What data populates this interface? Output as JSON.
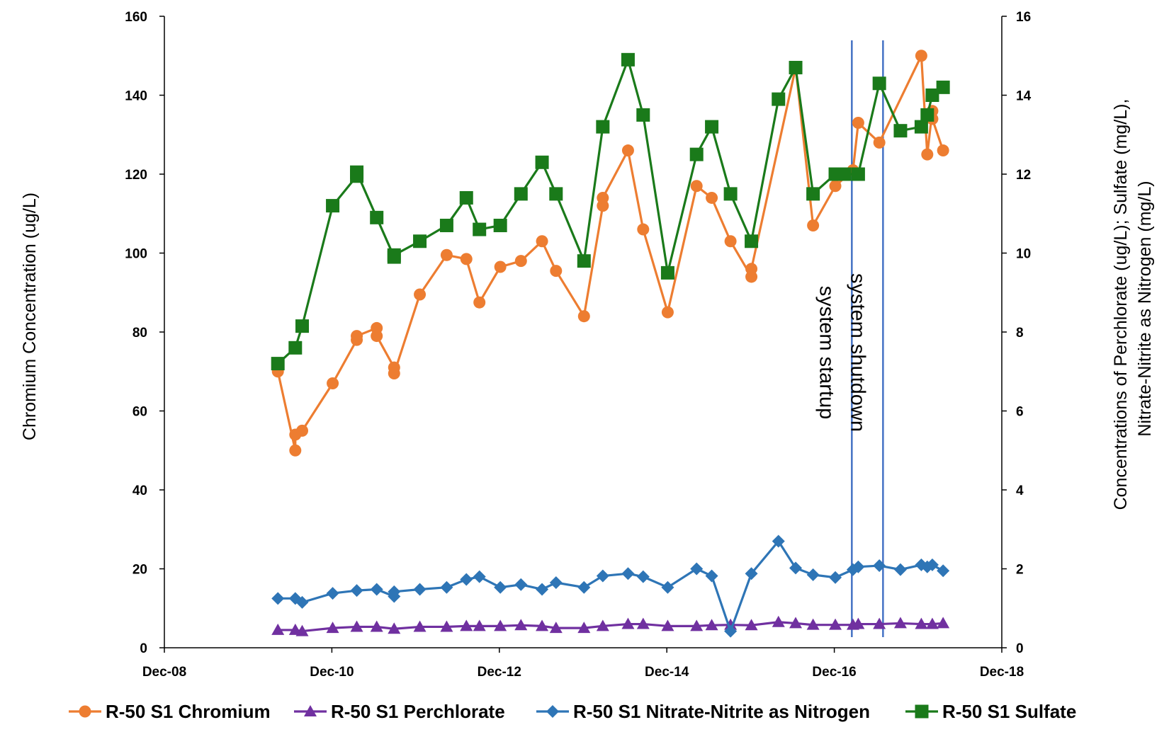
{
  "chart_data": {
    "type": "line",
    "x_axis": {
      "ticks": [
        "Dec-08",
        "Dec-10",
        "Dec-12",
        "Dec-14",
        "Dec-16",
        "Dec-18"
      ],
      "range": [
        "2008-12-01",
        "2018-12-01"
      ]
    },
    "y_left": {
      "label": "Chromium Concentration (ug/L)",
      "range": [
        0,
        160
      ],
      "ticks": [
        0,
        20,
        40,
        60,
        80,
        100,
        120,
        140,
        160
      ]
    },
    "y_right": {
      "label_line1": "Concentrations of Perchlorate (ug/L); Sulfate (mg/L),",
      "label_line2": "Nitrate-Nitrite as Nitrogen (mg/L)",
      "range": [
        0,
        16
      ],
      "ticks": [
        0,
        2,
        4,
        6,
        8,
        10,
        12,
        14,
        16
      ]
    },
    "annotations": [
      {
        "date": "2017-02-15",
        "text": "system startup"
      },
      {
        "date": "2017-07-01",
        "text": "system shutdown"
      }
    ],
    "legend_position": "bottom",
    "grid": false,
    "series": [
      {
        "name": "R-50 S1 Chromium",
        "axis": "left",
        "color": "#ED7D31",
        "marker": "circle",
        "points": [
          [
            "2010-04-10",
            70
          ],
          [
            "2010-06-25",
            50
          ],
          [
            "2010-06-25",
            54
          ],
          [
            "2010-07-25",
            55
          ],
          [
            "2010-12-05",
            67
          ],
          [
            "2011-03-20",
            78
          ],
          [
            "2011-03-20",
            79
          ],
          [
            "2011-06-15",
            81
          ],
          [
            "2011-06-15",
            79
          ],
          [
            "2011-08-30",
            71
          ],
          [
            "2011-08-30",
            69.5
          ],
          [
            "2011-12-20",
            89.5
          ],
          [
            "2012-04-15",
            99.5
          ],
          [
            "2012-07-10",
            98.5
          ],
          [
            "2012-09-05",
            87.5
          ],
          [
            "2012-12-05",
            96.5
          ],
          [
            "2013-03-05",
            98
          ],
          [
            "2013-06-05",
            103
          ],
          [
            "2013-08-05",
            95.5
          ],
          [
            "2013-12-05",
            84
          ],
          [
            "2014-02-25",
            112
          ],
          [
            "2014-02-25",
            114
          ],
          [
            "2014-06-15",
            126
          ],
          [
            "2014-08-20",
            106
          ],
          [
            "2014-12-05",
            85
          ],
          [
            "2015-04-10",
            117
          ],
          [
            "2015-06-15",
            114
          ],
          [
            "2015-09-05",
            103
          ],
          [
            "2015-12-05",
            94
          ],
          [
            "2015-12-05",
            96
          ],
          [
            "2016-06-15",
            147
          ],
          [
            "2016-08-30",
            107
          ],
          [
            "2016-12-05",
            117
          ],
          [
            "2017-02-20",
            121
          ],
          [
            "2017-03-15",
            133
          ],
          [
            "2017-06-15",
            128
          ],
          [
            "2017-12-15",
            150
          ],
          [
            "2018-01-10",
            125
          ],
          [
            "2018-02-01",
            136
          ],
          [
            "2018-02-01",
            134
          ],
          [
            "2018-03-20",
            126
          ]
        ]
      },
      {
        "name": "R-50 S1 Perchlorate",
        "axis": "right",
        "color": "#7030A0",
        "marker": "triangle",
        "points": [
          [
            "2010-04-10",
            0.45
          ],
          [
            "2010-06-25",
            0.45
          ],
          [
            "2010-07-25",
            0.42
          ],
          [
            "2010-12-05",
            0.5
          ],
          [
            "2011-03-20",
            0.53
          ],
          [
            "2011-06-15",
            0.53
          ],
          [
            "2011-08-30",
            0.48
          ],
          [
            "2011-12-20",
            0.53
          ],
          [
            "2012-04-15",
            0.53
          ],
          [
            "2012-07-10",
            0.55
          ],
          [
            "2012-09-05",
            0.55
          ],
          [
            "2012-12-05",
            0.55
          ],
          [
            "2013-03-05",
            0.57
          ],
          [
            "2013-06-05",
            0.55
          ],
          [
            "2013-08-05",
            0.5
          ],
          [
            "2013-12-05",
            0.5
          ],
          [
            "2014-02-25",
            0.55
          ],
          [
            "2014-06-15",
            0.6
          ],
          [
            "2014-08-20",
            0.6
          ],
          [
            "2014-12-05",
            0.55
          ],
          [
            "2015-04-10",
            0.55
          ],
          [
            "2015-06-15",
            0.57
          ],
          [
            "2015-09-05",
            0.58
          ],
          [
            "2015-12-05",
            0.57
          ],
          [
            "2016-04-01",
            0.65
          ],
          [
            "2016-06-15",
            0.62
          ],
          [
            "2016-08-30",
            0.58
          ],
          [
            "2016-12-05",
            0.58
          ],
          [
            "2017-02-20",
            0.58
          ],
          [
            "2017-03-15",
            0.6
          ],
          [
            "2017-06-15",
            0.6
          ],
          [
            "2017-09-15",
            0.62
          ],
          [
            "2017-12-15",
            0.6
          ],
          [
            "2018-02-01",
            0.6
          ],
          [
            "2018-03-20",
            0.62
          ]
        ]
      },
      {
        "name": "R-50 S1 Nitrate-Nitrite as Nitrogen",
        "axis": "right",
        "color": "#2E75B6",
        "marker": "diamond",
        "points": [
          [
            "2010-04-10",
            1.25
          ],
          [
            "2010-06-25",
            1.25
          ],
          [
            "2010-07-25",
            1.15
          ],
          [
            "2010-12-05",
            1.38
          ],
          [
            "2011-03-20",
            1.45
          ],
          [
            "2011-06-15",
            1.48
          ],
          [
            "2011-08-30",
            1.3
          ],
          [
            "2011-08-30",
            1.42
          ],
          [
            "2011-12-20",
            1.48
          ],
          [
            "2012-04-15",
            1.53
          ],
          [
            "2012-07-10",
            1.73
          ],
          [
            "2012-09-05",
            1.8
          ],
          [
            "2012-12-05",
            1.53
          ],
          [
            "2013-03-05",
            1.6
          ],
          [
            "2013-06-05",
            1.48
          ],
          [
            "2013-08-05",
            1.65
          ],
          [
            "2013-12-05",
            1.53
          ],
          [
            "2014-02-25",
            1.82
          ],
          [
            "2014-06-15",
            1.88
          ],
          [
            "2014-08-20",
            1.8
          ],
          [
            "2014-12-05",
            1.53
          ],
          [
            "2015-04-10",
            2.0
          ],
          [
            "2015-06-15",
            1.82
          ],
          [
            "2015-09-05",
            0.42
          ],
          [
            "2015-12-05",
            1.88
          ],
          [
            "2016-04-01",
            2.7
          ],
          [
            "2016-06-15",
            2.02
          ],
          [
            "2016-08-30",
            1.85
          ],
          [
            "2016-12-05",
            1.78
          ],
          [
            "2017-02-20",
            1.98
          ],
          [
            "2017-03-15",
            2.05
          ],
          [
            "2017-06-15",
            2.08
          ],
          [
            "2017-09-15",
            1.98
          ],
          [
            "2017-12-15",
            2.1
          ],
          [
            "2018-01-10",
            2.05
          ],
          [
            "2018-02-01",
            2.1
          ],
          [
            "2018-03-20",
            1.95
          ]
        ]
      },
      {
        "name": "R-50 S1 Sulfate",
        "axis": "right",
        "color": "#1A7A1A",
        "marker": "square",
        "points": [
          [
            "2010-04-10",
            7.2
          ],
          [
            "2010-06-25",
            7.6
          ],
          [
            "2010-07-25",
            8.15
          ],
          [
            "2010-12-05",
            11.2
          ],
          [
            "2011-03-20",
            11.95
          ],
          [
            "2011-03-20",
            12.05
          ],
          [
            "2011-06-15",
            10.9
          ],
          [
            "2011-08-30",
            9.9
          ],
          [
            "2011-08-30",
            9.95
          ],
          [
            "2011-12-20",
            10.3
          ],
          [
            "2012-04-15",
            10.7
          ],
          [
            "2012-07-10",
            11.4
          ],
          [
            "2012-09-05",
            10.6
          ],
          [
            "2012-12-05",
            10.7
          ],
          [
            "2013-03-05",
            11.5
          ],
          [
            "2013-06-05",
            12.3
          ],
          [
            "2013-08-05",
            11.5
          ],
          [
            "2013-12-05",
            9.8
          ],
          [
            "2014-02-25",
            13.2
          ],
          [
            "2014-06-15",
            14.9
          ],
          [
            "2014-08-20",
            13.5
          ],
          [
            "2014-12-05",
            9.5
          ],
          [
            "2015-04-10",
            12.5
          ],
          [
            "2015-06-15",
            13.2
          ],
          [
            "2015-09-05",
            11.5
          ],
          [
            "2015-12-05",
            10.3
          ],
          [
            "2016-04-01",
            13.9
          ],
          [
            "2016-06-15",
            14.7
          ],
          [
            "2016-08-30",
            11.5
          ],
          [
            "2016-12-05",
            12.0
          ],
          [
            "2017-01-15",
            12.0
          ],
          [
            "2017-03-15",
            12.0
          ],
          [
            "2017-06-15",
            14.3
          ],
          [
            "2017-09-15",
            13.1
          ],
          [
            "2017-12-15",
            13.2
          ],
          [
            "2018-01-10",
            13.5
          ],
          [
            "2018-02-01",
            14.0
          ],
          [
            "2018-03-20",
            14.2
          ]
        ]
      }
    ]
  }
}
